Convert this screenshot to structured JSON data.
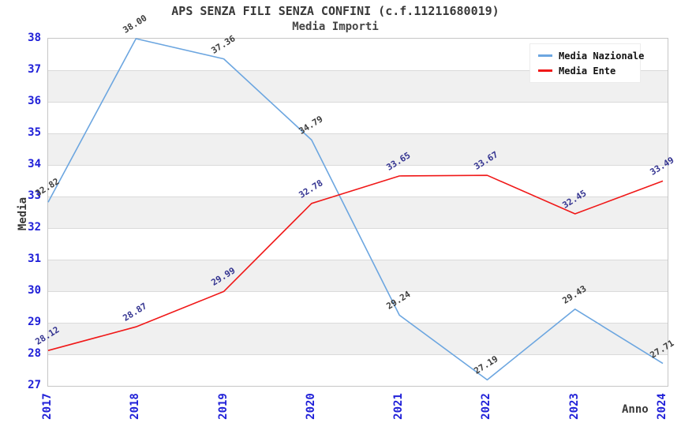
{
  "chart_data": {
    "type": "line",
    "title": "APS SENZA FILI SENZA CONFINI (c.f.11211680019)",
    "subtitle": "Media Importi",
    "xlabel": "Anno",
    "ylabel": "Media",
    "x": [
      2017,
      2018,
      2019,
      2020,
      2021,
      2022,
      2023,
      2024
    ],
    "series": [
      {
        "name": "Media Nazionale",
        "color": "#6ca6e0",
        "label_color": "#3d3d3d",
        "values": [
          32.82,
          38.0,
          37.36,
          34.79,
          29.24,
          27.19,
          29.43,
          27.71
        ]
      },
      {
        "name": "Media Ente",
        "color": "#f01818",
        "label_color": "#333390",
        "values": [
          28.12,
          28.87,
          29.99,
          32.78,
          33.65,
          33.67,
          32.45,
          33.49
        ]
      }
    ],
    "ylim": [
      27,
      38
    ],
    "yticks": [
      27,
      28,
      29,
      30,
      31,
      32,
      33,
      34,
      35,
      36,
      37,
      38
    ],
    "grid": "horizontal-bands-alternating",
    "legend_position": "top-right",
    "colors": {
      "tick_label": "#2020d8",
      "band_gray": "#f0f0f0",
      "gridline": "#dadada",
      "plot_border": "#c6c6c6",
      "title_text": "#383838"
    }
  }
}
